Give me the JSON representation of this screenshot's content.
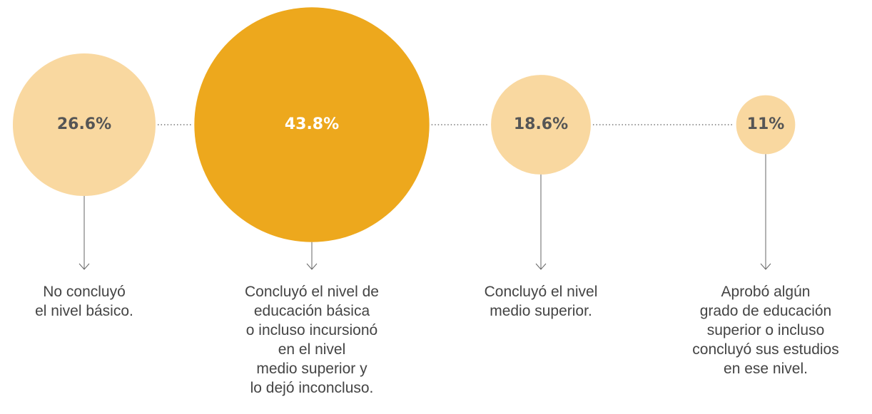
{
  "chart_data": {
    "type": "bubble",
    "categories": [
      "No concluyó\nel nivel básico.",
      "Concluyó el nivel de\neducación básica\no incluso incursionó\nen el nivel\nmedio superior y\nlo dejó inconcluso.",
      "Concluyó el nivel\nmedio superior.",
      "Aprobó algún\ngrado de educación\nsuperior o incluso\nconcluyó sus estudios\nen ese nivel."
    ],
    "values": [
      26.6,
      43.8,
      18.6,
      11
    ],
    "value_labels": [
      "26.6%",
      "43.8%",
      "18.6%",
      "11%"
    ],
    "colors": [
      "#f9d8a0",
      "#eda81d",
      "#f9d8a0",
      "#f9d8a0"
    ],
    "label_colors": [
      "#555555",
      "#ffffff",
      "#555555",
      "#555555"
    ]
  }
}
